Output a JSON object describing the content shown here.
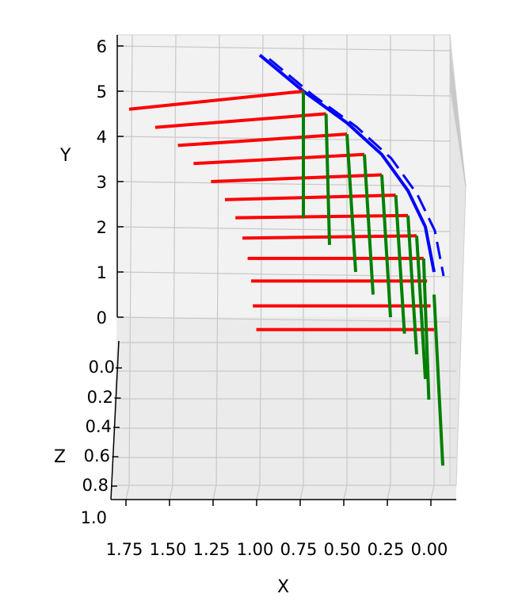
{
  "chart_data": {
    "type": "3d-line",
    "title": "",
    "xlabel": "X",
    "ylabel": "Y",
    "zlabel": "Z",
    "x_ticks": [
      "1.75",
      "1.50",
      "1.25",
      "1.00",
      "0.75",
      "0.50",
      "0.25",
      "0.00"
    ],
    "y_ticks": [
      "0",
      "1",
      "2",
      "3",
      "4",
      "5",
      "6"
    ],
    "z_ticks": [
      "0.0",
      "0.2",
      "0.4",
      "0.6",
      "0.8",
      "1.0"
    ],
    "grid": true,
    "pane_color": "#f2f2f2",
    "series": [
      {
        "color": "#0000ff",
        "kind": "curve",
        "points": [
          [
            1.0,
            5.8,
            0.0
          ],
          [
            0.75,
            5.0,
            0.1
          ],
          [
            0.5,
            4.3,
            0.2
          ],
          [
            0.3,
            3.6,
            0.3
          ],
          [
            0.15,
            2.8,
            0.4
          ],
          [
            0.05,
            2.0,
            0.5
          ],
          [
            0.0,
            1.0,
            0.6
          ]
        ]
      },
      {
        "color": "#ff0000",
        "kind": "segments",
        "segments": [
          [
            [
              1.75,
              4.6
            ],
            [
              0.75,
              5.0
            ]
          ],
          [
            [
              1.6,
              4.2
            ],
            [
              0.62,
              4.5
            ]
          ],
          [
            [
              1.47,
              3.8
            ],
            [
              0.5,
              4.05
            ]
          ],
          [
            [
              1.38,
              3.4
            ],
            [
              0.4,
              3.6
            ]
          ],
          [
            [
              1.28,
              3.0
            ],
            [
              0.3,
              3.15
            ]
          ],
          [
            [
              1.2,
              2.6
            ],
            [
              0.22,
              2.7
            ]
          ],
          [
            [
              1.14,
              2.2
            ],
            [
              0.15,
              2.25
            ]
          ],
          [
            [
              1.1,
              1.75
            ],
            [
              0.1,
              1.8
            ]
          ],
          [
            [
              1.07,
              1.3
            ],
            [
              0.06,
              1.3
            ]
          ],
          [
            [
              1.05,
              0.8
            ],
            [
              0.04,
              0.8
            ]
          ],
          [
            [
              1.04,
              0.25
            ],
            [
              0.02,
              0.25
            ]
          ],
          [
            [
              1.02,
              -0.3
            ],
            [
              0.0,
              -0.3
            ]
          ]
        ]
      },
      {
        "color": "#008000",
        "kind": "segments",
        "segments": [
          [
            [
              0.75,
              5.0
            ],
            [
              0.75,
              2.2
            ]
          ],
          [
            [
              0.62,
              4.5
            ],
            [
              0.6,
              1.6
            ]
          ],
          [
            [
              0.5,
              4.05
            ],
            [
              0.45,
              1.0
            ]
          ],
          [
            [
              0.4,
              3.6
            ],
            [
              0.35,
              0.5
            ]
          ],
          [
            [
              0.3,
              3.15
            ],
            [
              0.25,
              0.0
            ]
          ],
          [
            [
              0.22,
              2.7
            ],
            [
              0.17,
              -0.4
            ]
          ],
          [
            [
              0.15,
              2.25
            ],
            [
              0.1,
              -0.9
            ]
          ],
          [
            [
              0.1,
              1.8
            ],
            [
              0.05,
              -1.5
            ]
          ],
          [
            [
              0.06,
              1.3
            ],
            [
              0.03,
              -2.0
            ]
          ],
          [
            [
              0.0,
              0.5
            ],
            [
              -0.05,
              -3.6
            ]
          ]
        ]
      }
    ]
  }
}
